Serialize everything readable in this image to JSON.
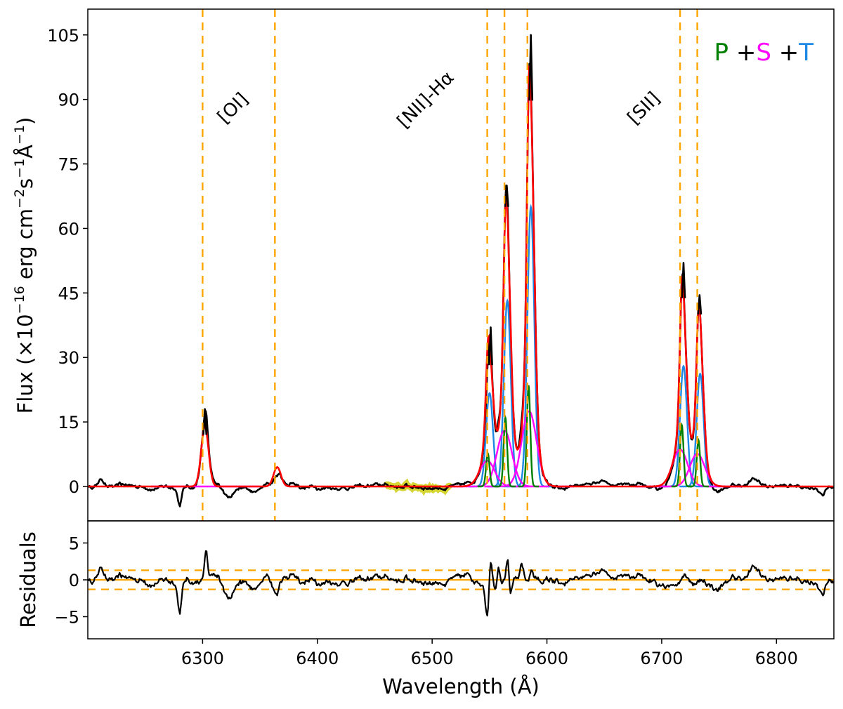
{
  "chart_data": [
    {
      "panel": "main",
      "type": "line",
      "xlabel": "",
      "ylabel": "Flux (×10^{-16} erg cm^{-2}s^{-1}Å^{-1})",
      "ylabel_parts": {
        "a": "Flux (×10",
        "a_sup": "−16",
        "b": " erg cm",
        "b_sup": "−2",
        "c": "s",
        "c_sup": "−1",
        "d": "Å",
        "d_sup": "−1",
        "e": ")"
      },
      "xlim": [
        6200,
        6850
      ],
      "ylim": [
        -8,
        111
      ],
      "yticks": [
        0,
        15,
        30,
        45,
        60,
        75,
        90,
        105
      ],
      "ytick_labels": [
        "0",
        "15",
        "30",
        "45",
        "60",
        "75",
        "90",
        "105"
      ],
      "line_markers": [
        6300,
        6363,
        6548,
        6563,
        6583,
        6716,
        6731
      ],
      "line_labels": [
        {
          "text": "[OI]",
          "x": 6330,
          "y": 87
        },
        {
          "text": "[NII]-Hα",
          "x": 6498,
          "y": 89
        },
        {
          "text": "[SII]",
          "x": 6688,
          "y": 87
        }
      ],
      "legend": {
        "entries": [
          {
            "text": "P",
            "color": "#008000"
          },
          {
            "text": " +",
            "color": "#000000"
          },
          {
            "text": "S",
            "color": "#ff00ff"
          },
          {
            "text": " +",
            "color": "#000000"
          },
          {
            "text": "T",
            "color": "#1e88e5"
          }
        ],
        "placement": "top-right"
      },
      "components": {
        "primary": {
          "name": "P",
          "color": "#008000",
          "lines": [
            {
              "center": 6548.5,
              "amp": 7.7,
              "sigma": 1.5
            },
            {
              "center": 6563.8,
              "amp": 16.0,
              "sigma": 1.5
            },
            {
              "center": 6584.0,
              "amp": 23.5,
              "sigma": 1.5
            },
            {
              "center": 6717.5,
              "amp": 14.3,
              "sigma": 1.5
            },
            {
              "center": 6732.0,
              "amp": 10.8,
              "sigma": 1.5
            }
          ]
        },
        "secondary": {
          "name": "S",
          "color": "#ff00ff",
          "lines": [
            {
              "center": 6548.0,
              "amp": 6.0,
              "sigma": 6.5
            },
            {
              "center": 6563.0,
              "amp": 13.0,
              "sigma": 6.5
            },
            {
              "center": 6584.5,
              "amp": 17.5,
              "sigma": 6.5
            },
            {
              "center": 6716.0,
              "amp": 8.6,
              "sigma": 6.5
            },
            {
              "center": 6731.0,
              "amp": 7.6,
              "sigma": 6.5
            }
          ]
        },
        "tertiary": {
          "name": "T",
          "color": "#1e88e5",
          "lines": [
            {
              "center": 6550.0,
              "amp": 21.7,
              "sigma": 3.0
            },
            {
              "center": 6565.5,
              "amp": 43.2,
              "sigma": 3.0
            },
            {
              "center": 6586.0,
              "amp": 65.0,
              "sigma": 3.0
            },
            {
              "center": 6719.0,
              "amp": 28.0,
              "sigma": 3.0
            },
            {
              "center": 6733.5,
              "amp": 26.2,
              "sigma": 3.0
            }
          ]
        }
      },
      "oi_fit": [
        {
          "center": 6302,
          "amp": 14.0,
          "sigma": 3.2
        },
        {
          "center": 6365,
          "amp": 4.5,
          "sigma": 3.2
        }
      ],
      "masked_region": [
        6460,
        6515
      ],
      "observed_peaks": [
        {
          "x": 6302,
          "y": 18.0
        },
        {
          "x": 6551,
          "y": 37.0
        },
        {
          "x": 6565,
          "y": 70.0
        },
        {
          "x": 6586,
          "y": 105.0
        },
        {
          "x": 6719,
          "y": 52.0
        },
        {
          "x": 6733,
          "y": 44.5
        }
      ],
      "series": [
        {
          "name": "Observed spectrum",
          "color": "#000000"
        },
        {
          "name": "Total fit",
          "color": "#ff0000"
        },
        {
          "name": "Masked region",
          "color": "#cccc00"
        }
      ]
    },
    {
      "panel": "residuals",
      "type": "line",
      "xlabel": "Wavelength (Å)",
      "ylabel": "Residuals",
      "xlim": [
        6200,
        6850
      ],
      "ylim": [
        -8,
        8
      ],
      "yticks": [
        -5,
        0,
        5
      ],
      "ytick_labels": [
        "−5",
        "0",
        "5"
      ],
      "xticks": [
        6300,
        6400,
        6500,
        6600,
        6700,
        6800
      ],
      "xtick_labels": [
        "6300",
        "6400",
        "6500",
        "6600",
        "6700",
        "6800"
      ],
      "bands": [
        1.3,
        -1.3
      ],
      "zero_line": 0,
      "notable_features": [
        {
          "x": 6280,
          "y": -4.3
        },
        {
          "x": 6303,
          "y": 4.1
        },
        {
          "x": 6548,
          "y": -4.8
        },
        {
          "x": 6558,
          "y": 2.8
        },
        {
          "x": 6567,
          "y": -3.0
        }
      ]
    }
  ]
}
